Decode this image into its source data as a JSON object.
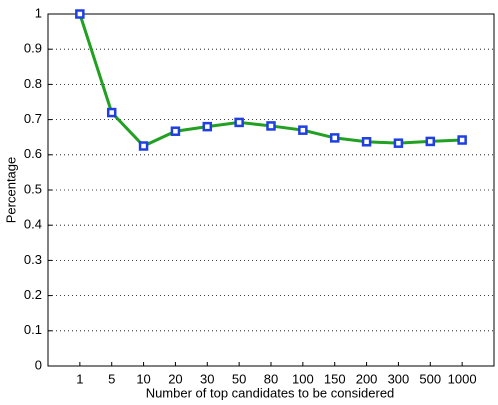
{
  "chart_data": {
    "type": "line",
    "xlabel": "Number of top candidates to be considered",
    "ylabel": "Percentage",
    "categories": [
      "1",
      "5",
      "10",
      "20",
      "30",
      "50",
      "80",
      "100",
      "150",
      "200",
      "300",
      "500",
      "1000"
    ],
    "series": [
      {
        "name": "Percentage",
        "color": "#22a022",
        "marker_color": "#1f3fe0",
        "values": [
          1.0,
          0.72,
          0.625,
          0.667,
          0.68,
          0.692,
          0.682,
          0.67,
          0.648,
          0.637,
          0.633,
          0.638,
          0.642
        ]
      }
    ],
    "ylim": [
      0,
      1
    ],
    "yticks": [
      0,
      0.1,
      0.2,
      0.3,
      0.4,
      0.5,
      0.6,
      0.7,
      0.8,
      0.9,
      1
    ],
    "grid": true
  }
}
